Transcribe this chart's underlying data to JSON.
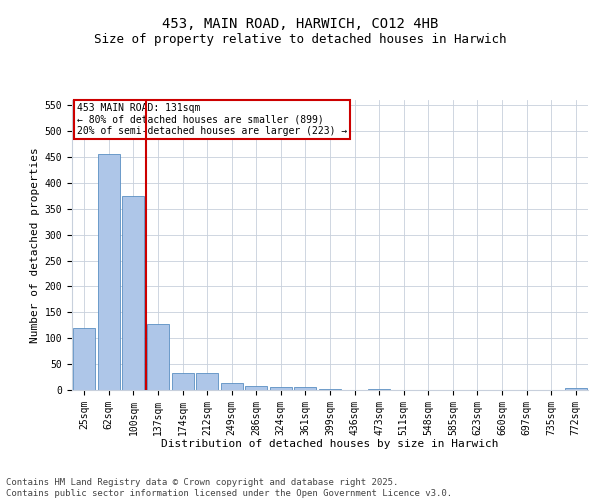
{
  "title": "453, MAIN ROAD, HARWICH, CO12 4HB",
  "subtitle": "Size of property relative to detached houses in Harwich",
  "xlabel": "Distribution of detached houses by size in Harwich",
  "ylabel": "Number of detached properties",
  "categories": [
    "25sqm",
    "62sqm",
    "100sqm",
    "137sqm",
    "174sqm",
    "212sqm",
    "249sqm",
    "286sqm",
    "324sqm",
    "361sqm",
    "399sqm",
    "436sqm",
    "473sqm",
    "511sqm",
    "548sqm",
    "585sqm",
    "623sqm",
    "660sqm",
    "697sqm",
    "735sqm",
    "772sqm"
  ],
  "values": [
    120,
    455,
    375,
    128,
    33,
    33,
    13,
    8,
    6,
    5,
    2,
    0,
    1,
    0,
    0,
    0,
    0,
    0,
    0,
    0,
    3
  ],
  "bar_color": "#aec6e8",
  "bar_edge_color": "#5a8fc2",
  "vline_x_index": 2.5,
  "vline_color": "#cc0000",
  "annotation_text": "453 MAIN ROAD: 131sqm\n← 80% of detached houses are smaller (899)\n20% of semi-detached houses are larger (223) →",
  "annotation_box_color": "#ffffff",
  "annotation_box_edge_color": "#cc0000",
  "ylim": [
    0,
    560
  ],
  "yticks": [
    0,
    50,
    100,
    150,
    200,
    250,
    300,
    350,
    400,
    450,
    500,
    550
  ],
  "background_color": "#ffffff",
  "grid_color": "#c8d0dc",
  "footer_text": "Contains HM Land Registry data © Crown copyright and database right 2025.\nContains public sector information licensed under the Open Government Licence v3.0.",
  "title_fontsize": 10,
  "subtitle_fontsize": 9,
  "axis_label_fontsize": 8,
  "tick_fontsize": 7,
  "annotation_fontsize": 7,
  "footer_fontsize": 6.5
}
